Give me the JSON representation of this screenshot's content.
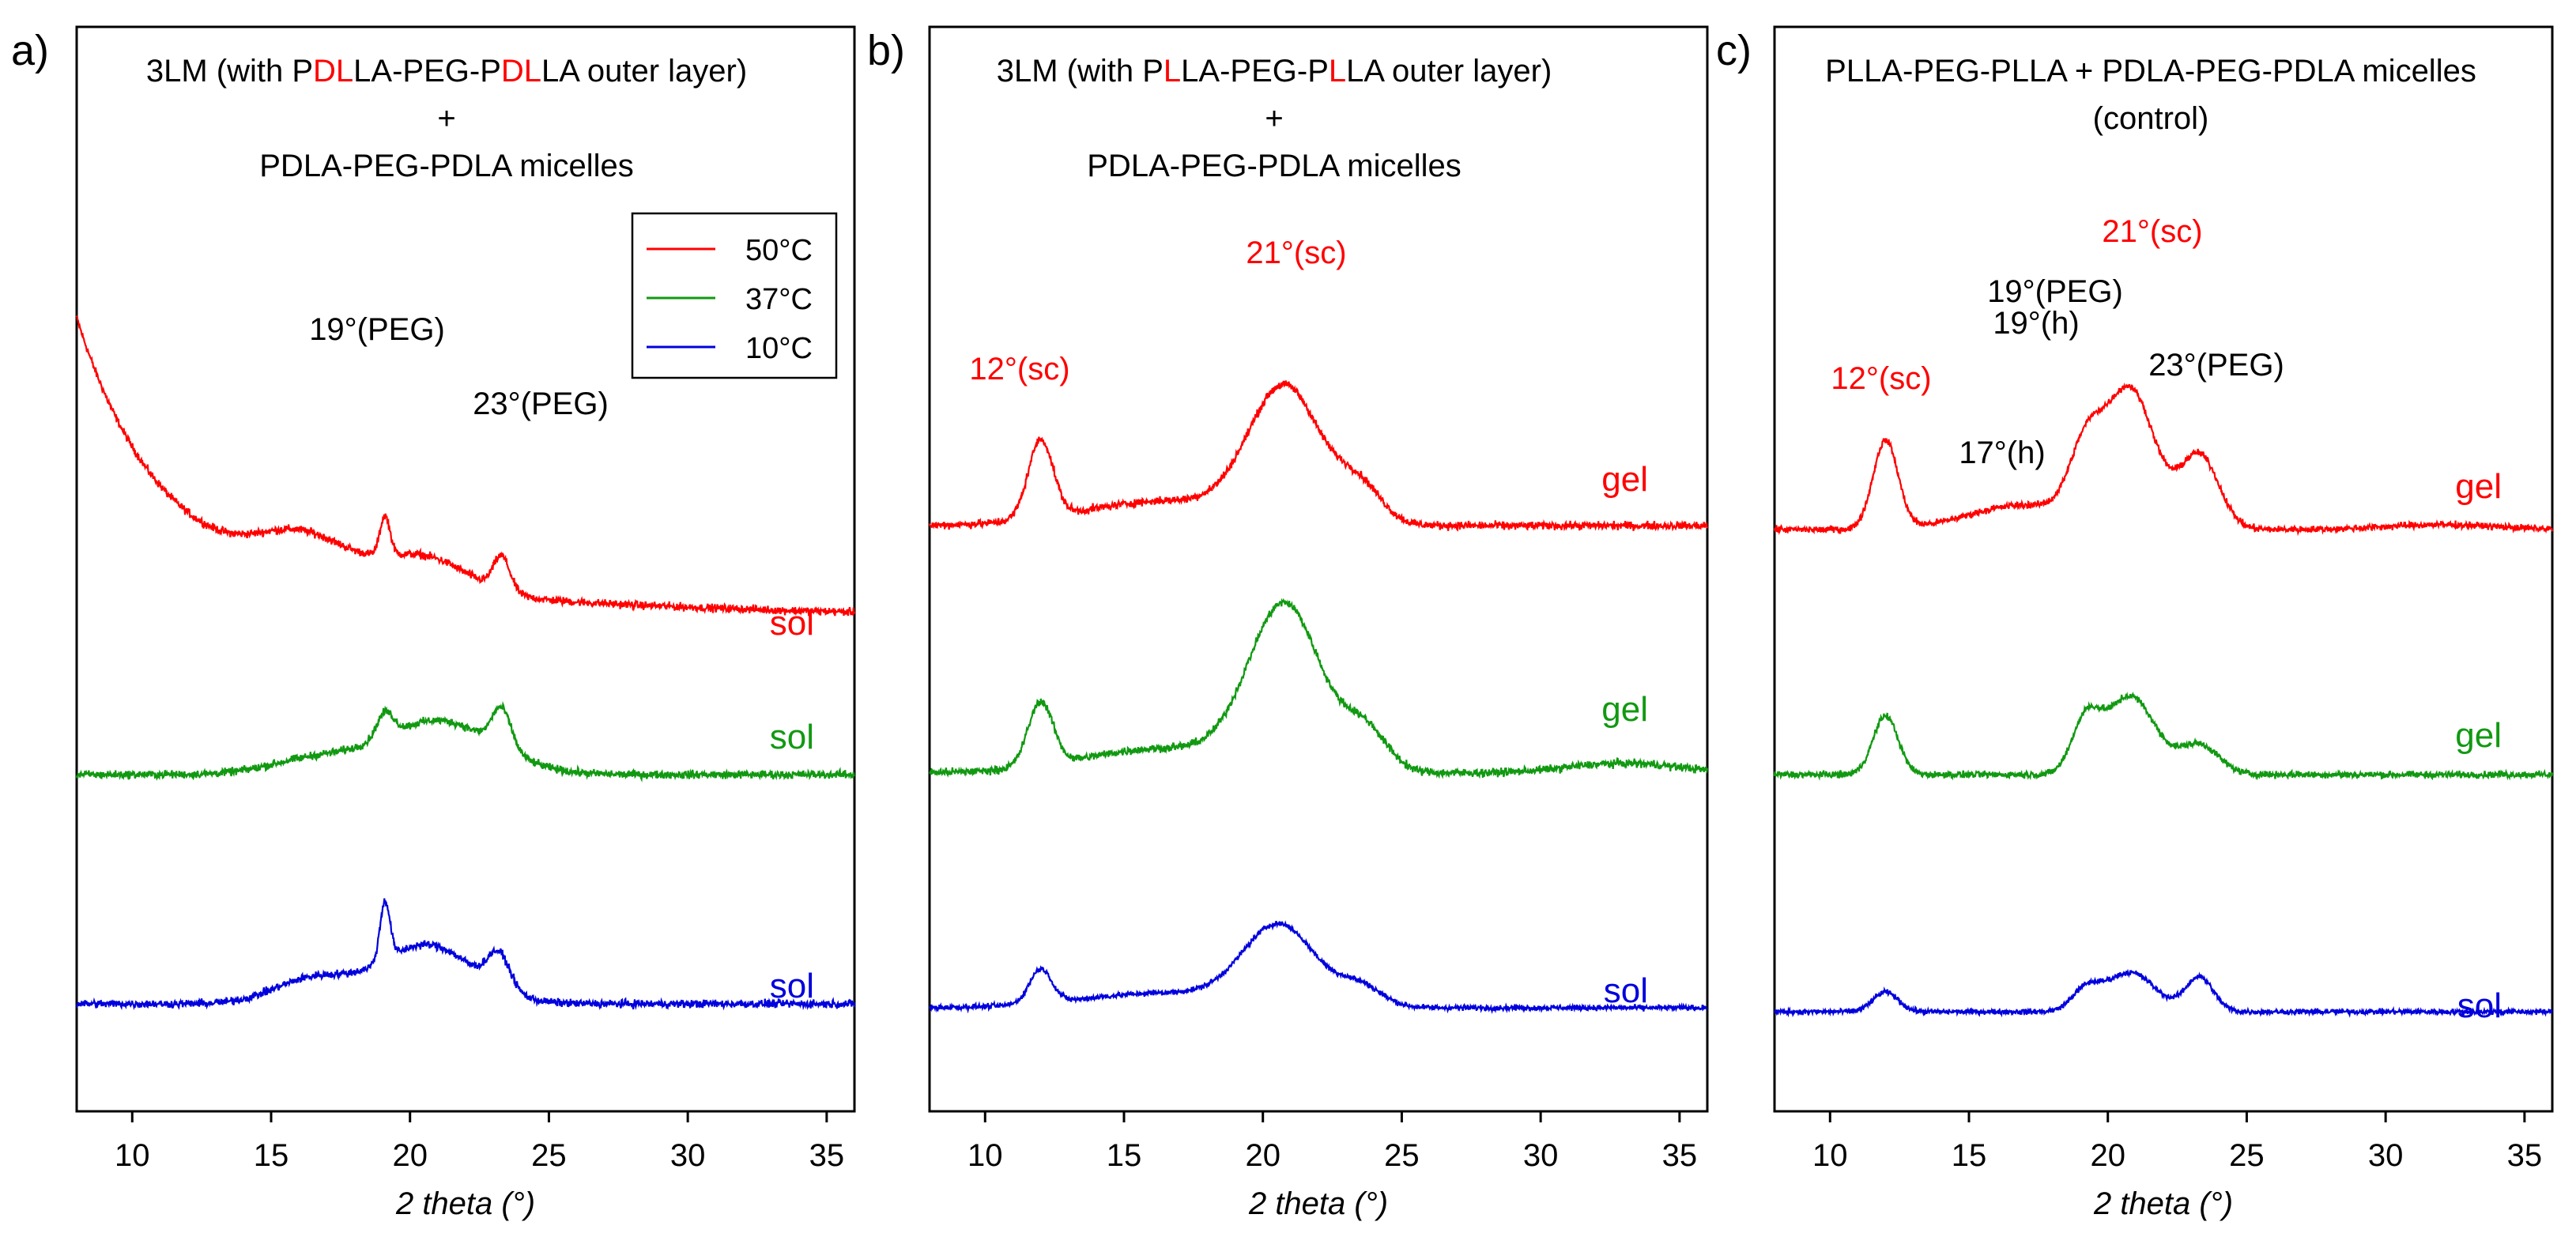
{
  "colors": {
    "t50": "#ff0000",
    "t37": "#119911",
    "t10": "#0000dd",
    "text": "#000000",
    "red_text": "#ff0000"
  },
  "legend": {
    "entries": [
      "50°C",
      "37°C",
      "10°C"
    ]
  },
  "chart_data": [
    {
      "type": "line",
      "panel": "a)",
      "title": {
        "line1_segments": [
          {
            "text": "3LM (with P",
            "c": "text"
          },
          {
            "text": "DL",
            "c": "red_text"
          },
          {
            "text": "LA-PEG-P",
            "c": "text"
          },
          {
            "text": "DL",
            "c": "red_text"
          },
          {
            "text": "LA outer layer)",
            "c": "text"
          }
        ],
        "line2": "+",
        "line3": "PDLA-PEG-PDLA micelles"
      },
      "xlabel": "2 theta (°)",
      "ylabel": "",
      "xlim": [
        8,
        36
      ],
      "xticks": [
        "10",
        "15",
        "20",
        "25",
        "30",
        "35"
      ],
      "show_legend": true,
      "series": [
        {
          "name": "50°C",
          "color_key": "t50",
          "state": "sol",
          "baseline": 0.09,
          "decay": {
            "amp": 0.48,
            "tau": 2.8,
            "x0": 8,
            "tail_amp": 0.14,
            "tail_tau": 14
          },
          "peaks": [
            {
              "x": 16.2,
              "h": 0.08,
              "w": 1.6
            },
            {
              "x": 19.1,
              "h": 0.08,
              "w": 0.18
            },
            {
              "x": 20.5,
              "h": 0.07,
              "w": 1.6
            },
            {
              "x": 23.3,
              "h": 0.07,
              "w": 0.3
            }
          ],
          "noise": 0.012
        },
        {
          "name": "37°C",
          "color_key": "t37",
          "state": "sol",
          "baseline": 0,
          "peaks": [
            {
              "x": 16.5,
              "h": 0.03,
              "w": 1.6
            },
            {
              "x": 19.1,
              "h": 0.05,
              "w": 0.3
            },
            {
              "x": 21.0,
              "h": 0.11,
              "w": 2.0
            },
            {
              "x": 23.3,
              "h": 0.08,
              "w": 0.35
            }
          ],
          "noise": 0.012
        },
        {
          "name": "10°C",
          "color_key": "t10",
          "state": "sol",
          "baseline": 0,
          "peaks": [
            {
              "x": 16.5,
              "h": 0.05,
              "w": 1.4
            },
            {
              "x": 19.1,
              "h": 0.12,
              "w": 0.18
            },
            {
              "x": 20.6,
              "h": 0.12,
              "w": 1.7
            },
            {
              "x": 23.2,
              "h": 0.07,
              "w": 0.4
            }
          ],
          "noise": 0.012
        }
      ],
      "annotations": [
        {
          "text": "19°(PEG)",
          "x": 19.0,
          "dy": 0.95,
          "color": "text",
          "anchor": "middle"
        },
        {
          "text": "23°(PEG)",
          "x": 23.2,
          "dy": 0.89,
          "color": "text",
          "anchor": "middle"
        }
      ]
    },
    {
      "type": "line",
      "panel": "b)",
      "title": {
        "line1_segments": [
          {
            "text": "3LM (with P",
            "c": "text"
          },
          {
            "text": "L",
            "c": "red_text"
          },
          {
            "text": "LA-PEG-P",
            "c": "text"
          },
          {
            "text": "L",
            "c": "red_text"
          },
          {
            "text": "LA outer layer)",
            "c": "text"
          }
        ],
        "line2": "+",
        "line3": "PDLA-PEG-PDLA micelles"
      },
      "xlabel": "2 theta (°)",
      "ylabel": "",
      "xlim": [
        8,
        36
      ],
      "xticks": [
        "10",
        "15",
        "20",
        "25",
        "30",
        "35"
      ],
      "show_legend": false,
      "series": [
        {
          "name": "50°C",
          "color_key": "t50",
          "state": "gel",
          "baseline": 0,
          "peaks": [
            {
              "x": 12.0,
              "h": 0.16,
              "w": 0.45
            },
            {
              "x": 16.5,
              "h": 0.05,
              "w": 3.0
            },
            {
              "x": 20.8,
              "h": 0.27,
              "w": 1.3
            },
            {
              "x": 23.5,
              "h": 0.07,
              "w": 0.8
            }
          ],
          "noise": 0.012
        },
        {
          "name": "37°C",
          "color_key": "t37",
          "state": "gel",
          "baseline": 0,
          "peaks": [
            {
              "x": 12.0,
              "h": 0.13,
              "w": 0.45
            },
            {
              "x": 16.5,
              "h": 0.05,
              "w": 3.0
            },
            {
              "x": 20.8,
              "h": 0.33,
              "w": 1.3
            },
            {
              "x": 23.7,
              "h": 0.08,
              "w": 0.8
            },
            {
              "x": 33.0,
              "h": 0.02,
              "w": 2.0
            }
          ],
          "noise": 0.012
        },
        {
          "name": "10°C",
          "color_key": "t10",
          "state": "sol",
          "baseline": 0,
          "peaks": [
            {
              "x": 12.0,
              "h": 0.07,
              "w": 0.4
            },
            {
              "x": 16.5,
              "h": 0.03,
              "w": 3.0
            },
            {
              "x": 20.6,
              "h": 0.16,
              "w": 1.3
            },
            {
              "x": 23.5,
              "h": 0.04,
              "w": 0.8
            }
          ],
          "noise": 0.008
        }
      ],
      "annotations": [
        {
          "text": "12°(sc)",
          "x": 12.2,
          "dy": 1.13,
          "color": "red_text",
          "anchor": "middle"
        },
        {
          "text": "21°(sc)",
          "x": 20.8,
          "dy": 1.275,
          "color": "red_text",
          "anchor": "middle"
        }
      ]
    },
    {
      "type": "line",
      "panel": "c)",
      "title": {
        "line1_segments": [
          {
            "text": "PLLA-PEG-PLLA + PDLA-PEG-PDLA micelles",
            "c": "text"
          }
        ],
        "line2": "(control)",
        "line3": ""
      },
      "xlabel": "2 theta (°)",
      "ylabel": "",
      "xlim": [
        8,
        36
      ],
      "xticks": [
        "10",
        "15",
        "20",
        "25",
        "30",
        "35"
      ],
      "show_legend": false,
      "series": [
        {
          "name": "50°C",
          "color_key": "t50",
          "state": "gel",
          "baseline": 0,
          "peaks": [
            {
              "x": 12.0,
              "h": 0.18,
              "w": 0.45
            },
            {
              "x": 17.0,
              "h": 0.05,
              "w": 2.0
            },
            {
              "x": 19.2,
              "h": 0.13,
              "w": 0.6
            },
            {
              "x": 20.8,
              "h": 0.28,
              "w": 0.9
            },
            {
              "x": 23.3,
              "h": 0.15,
              "w": 0.7
            },
            {
              "x": 32.0,
              "h": 0.01,
              "w": 2.0
            }
          ],
          "noise": 0.01
        },
        {
          "name": "37°C",
          "color_key": "t37",
          "state": "gel",
          "baseline": 0,
          "peaks": [
            {
              "x": 12.0,
              "h": 0.12,
              "w": 0.45
            },
            {
              "x": 19.2,
              "h": 0.1,
              "w": 0.5
            },
            {
              "x": 20.8,
              "h": 0.16,
              "w": 0.9
            },
            {
              "x": 23.3,
              "h": 0.06,
              "w": 0.7
            }
          ],
          "noise": 0.01
        },
        {
          "name": "10°C",
          "color_key": "t10",
          "state": "sol",
          "baseline": 0,
          "peaks": [
            {
              "x": 12.0,
              "h": 0.04,
              "w": 0.45
            },
            {
              "x": 19.2,
              "h": 0.04,
              "w": 0.5
            },
            {
              "x": 20.8,
              "h": 0.08,
              "w": 0.9
            },
            {
              "x": 23.3,
              "h": 0.07,
              "w": 0.5
            }
          ],
          "noise": 0.008
        }
      ],
      "annotations": [
        {
          "text": "12°(sc)",
          "x": 12.0,
          "dy": 1.21,
          "color": "red_text",
          "anchor": "middle"
        },
        {
          "text": "21°(sc)",
          "x": 20.8,
          "dy": 1.4,
          "color": "red_text",
          "anchor": "middle"
        },
        {
          "text": "19°(PEG)",
          "x": 18.8,
          "dy": 1.25,
          "color": "text",
          "anchor": "middle"
        },
        {
          "text": "19°(h)",
          "x": 18.4,
          "dy": 1.18,
          "color": "text",
          "anchor": "middle"
        },
        {
          "text": "17°(h)",
          "x": 16.7,
          "dy": 0.95,
          "color": "text",
          "anchor": "middle"
        },
        {
          "text": "23°(PEG)",
          "x": 24.4,
          "dy": 1.11,
          "color": "text",
          "anchor": "middle"
        }
      ]
    }
  ]
}
